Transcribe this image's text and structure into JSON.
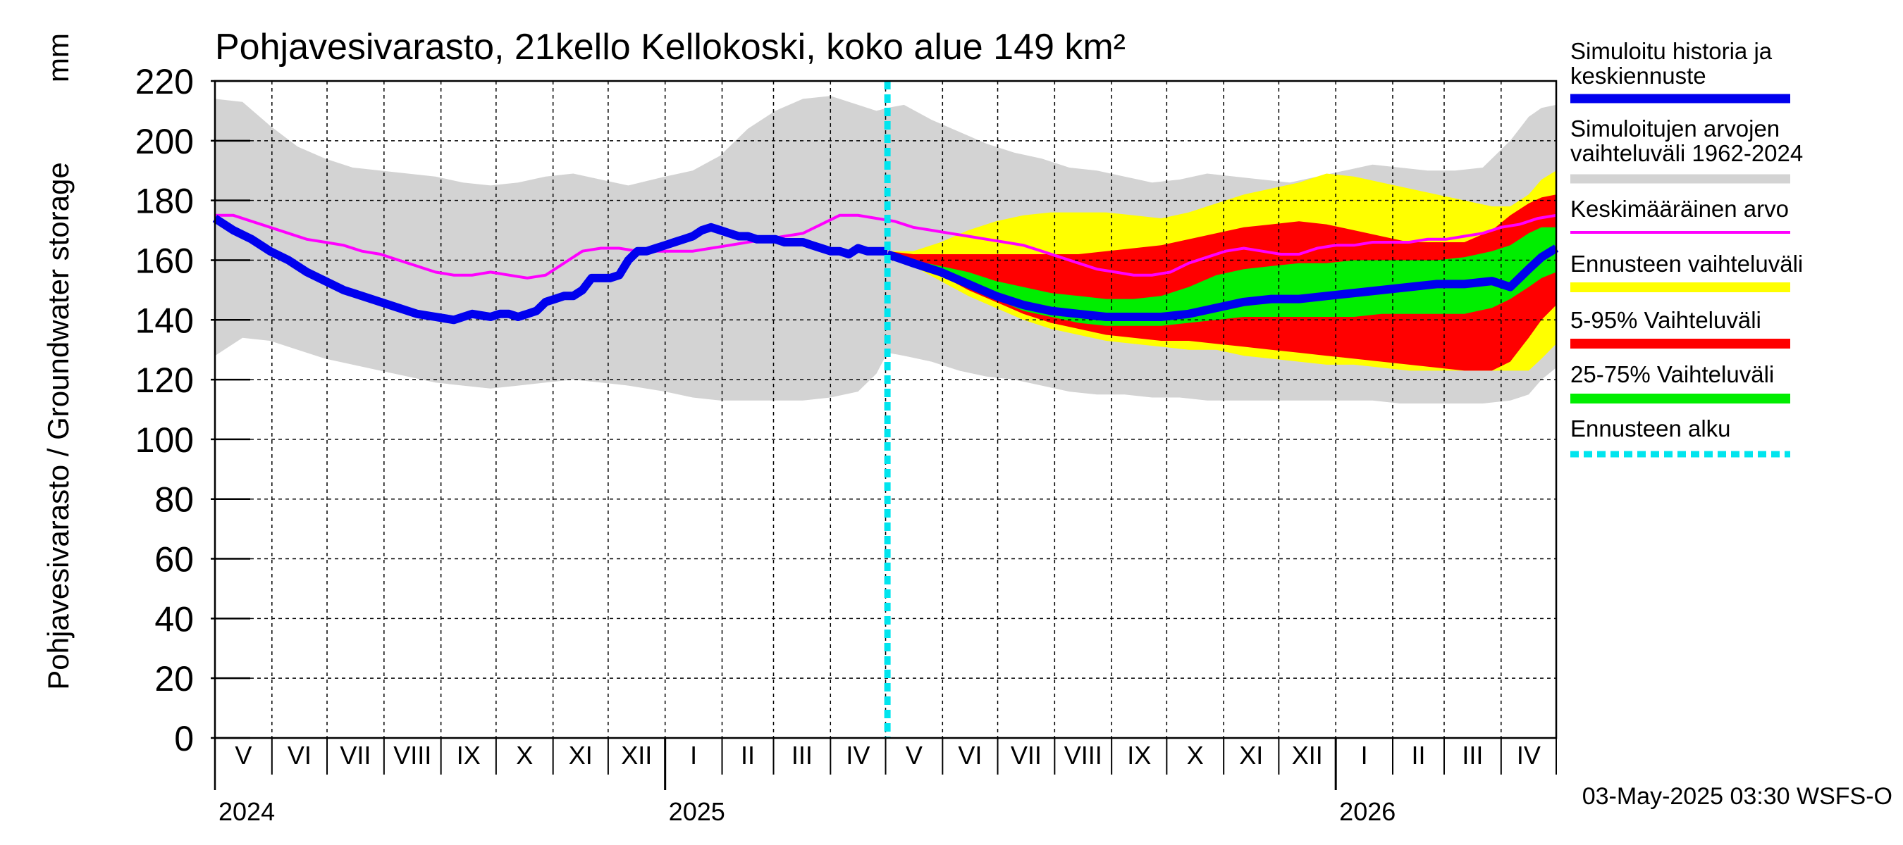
{
  "chart_data": {
    "type": "area",
    "title": "Pohjavesivarasto, 21kello Kellokoski, koko alue 149 km²",
    "ylabel": "Pohjavesivarasto / Groundwater storage",
    "yunit": "mm",
    "ylim": [
      0,
      220
    ],
    "yticks": [
      0,
      20,
      40,
      60,
      80,
      100,
      120,
      140,
      160,
      180,
      200,
      220
    ],
    "xlim_days": [
      0,
      730
    ],
    "month_labels": [
      "V",
      "VI",
      "VII",
      "VIII",
      "IX",
      "X",
      "XI",
      "XII",
      "I",
      "II",
      "III",
      "IV",
      "V",
      "VI",
      "VII",
      "VIII",
      "IX",
      "X",
      "XI",
      "XII",
      "I",
      "II",
      "III",
      "IV"
    ],
    "month_start_days": [
      0,
      31,
      61,
      92,
      123,
      153,
      184,
      214,
      245,
      276,
      304,
      335,
      365,
      396,
      426,
      457,
      488,
      518,
      549,
      579,
      610,
      641,
      669,
      700
    ],
    "year_labels": [
      {
        "label": "2024",
        "day": 0
      },
      {
        "label": "2025",
        "day": 245
      },
      {
        "label": "2026",
        "day": 610
      }
    ],
    "forecast_start_day": 366,
    "legend": [
      {
        "label": "Simuloitu historia ja keskiennuste",
        "key": "history"
      },
      {
        "label": "Simuloitujen arvojen vaihteluväli 1962-2024",
        "key": "hist_range"
      },
      {
        "label": "Keskimääräinen arvo",
        "key": "mean"
      },
      {
        "label": "Ennusteen vaihteluväli",
        "key": "fc_range"
      },
      {
        "label": "5-95% Vaihteluväli",
        "key": "p5_95"
      },
      {
        "label": "25-75% Vaihteluväli",
        "key": "p25_75"
      },
      {
        "label": "Ennusteen alku",
        "key": "fc_start"
      }
    ],
    "colors": {
      "history": "#0000ee",
      "hist_range": "#d3d3d3",
      "mean": "#ff00ff",
      "fc_range": "#ffff00",
      "p5_95": "#ff0000",
      "p25_75": "#00ee00",
      "fc_start": "#00e5ee"
    },
    "series": {
      "hist_range": {
        "x": [
          0,
          15,
          30,
          45,
          60,
          75,
          90,
          105,
          120,
          135,
          150,
          165,
          180,
          195,
          210,
          225,
          245,
          260,
          275,
          290,
          305,
          320,
          335,
          350,
          360,
          366,
          375,
          390,
          405,
          420,
          435,
          450,
          465,
          480,
          495,
          510,
          525,
          540,
          555,
          570,
          585,
          600,
          615,
          630,
          645,
          660,
          675,
          690,
          705,
          715,
          722,
          730
        ],
        "upper": [
          214,
          213,
          205,
          198,
          194,
          191,
          190,
          189,
          188,
          186,
          185,
          186,
          188,
          189,
          187,
          185,
          188,
          190,
          195,
          204,
          210,
          214,
          215,
          212,
          210,
          211,
          212,
          207,
          203,
          199,
          196,
          194,
          191,
          190,
          188,
          186,
          187,
          189,
          188,
          187,
          186,
          188,
          190,
          192,
          191,
          190,
          190,
          191,
          200,
          208,
          211,
          212
        ],
        "lower": [
          128,
          134,
          133,
          130,
          127,
          125,
          123,
          121,
          119,
          118,
          117,
          118,
          119,
          120,
          119,
          118,
          116,
          114,
          113,
          113,
          113,
          113,
          114,
          116,
          122,
          129,
          128,
          126,
          123,
          121,
          120,
          118,
          116,
          115,
          115,
          114,
          114,
          113,
          113,
          113,
          113,
          113,
          113,
          113,
          112,
          112,
          112,
          112,
          113,
          115,
          120,
          124
        ]
      },
      "fc_range": {
        "x": [
          366,
          380,
          395,
          410,
          425,
          440,
          455,
          470,
          485,
          500,
          515,
          530,
          545,
          560,
          575,
          590,
          605,
          620,
          635,
          650,
          665,
          680,
          695,
          705,
          715,
          722,
          730
        ],
        "upper": [
          163,
          163,
          166,
          170,
          173,
          175,
          176,
          176,
          176,
          175,
          174,
          176,
          179,
          182,
          184,
          186,
          189,
          188,
          186,
          184,
          182,
          180,
          178,
          178,
          182,
          187,
          190
        ],
        "lower": [
          163,
          158,
          153,
          148,
          144,
          140,
          137,
          135,
          133,
          132,
          131,
          130,
          130,
          128,
          127,
          126,
          125,
          125,
          124,
          123,
          123,
          123,
          123,
          123,
          123,
          127,
          132
        ]
      },
      "p5_95": {
        "x": [
          366,
          380,
          395,
          410,
          425,
          440,
          455,
          470,
          485,
          500,
          515,
          530,
          545,
          560,
          575,
          590,
          605,
          620,
          635,
          650,
          665,
          680,
          695,
          705,
          715,
          722,
          730
        ],
        "upper": [
          163,
          162,
          162,
          162,
          162,
          162,
          162,
          162,
          163,
          164,
          165,
          167,
          169,
          171,
          172,
          173,
          172,
          170,
          168,
          166,
          166,
          166,
          170,
          175,
          179,
          181,
          182
        ],
        "lower": [
          163,
          159,
          155,
          150,
          146,
          142,
          139,
          137,
          135,
          134,
          133,
          133,
          132,
          131,
          130,
          129,
          128,
          127,
          126,
          125,
          124,
          123,
          123,
          126,
          134,
          140,
          145
        ]
      },
      "p25_75": {
        "x": [
          366,
          380,
          395,
          410,
          425,
          440,
          455,
          470,
          485,
          500,
          515,
          530,
          545,
          560,
          575,
          590,
          605,
          620,
          635,
          650,
          665,
          680,
          695,
          705,
          715,
          722,
          730
        ],
        "upper": [
          162,
          160,
          158,
          156,
          153,
          151,
          149,
          148,
          147,
          147,
          148,
          151,
          155,
          157,
          158,
          159,
          159,
          160,
          160,
          160,
          160,
          161,
          163,
          165,
          169,
          171,
          171
        ],
        "lower": [
          162,
          159,
          155,
          151,
          147,
          143,
          141,
          139,
          138,
          138,
          138,
          139,
          140,
          141,
          141,
          141,
          141,
          141,
          142,
          142,
          142,
          142,
          144,
          147,
          151,
          154,
          156
        ]
      },
      "mean": {
        "x": [
          0,
          10,
          20,
          30,
          40,
          50,
          60,
          70,
          80,
          90,
          100,
          110,
          120,
          130,
          140,
          150,
          160,
          170,
          180,
          190,
          200,
          210,
          220,
          230,
          240,
          250,
          260,
          270,
          280,
          290,
          300,
          310,
          320,
          330,
          340,
          350,
          360,
          370,
          380,
          390,
          400,
          410,
          420,
          430,
          440,
          450,
          460,
          470,
          480,
          490,
          500,
          510,
          520,
          530,
          540,
          550,
          560,
          570,
          580,
          590,
          600,
          610,
          620,
          630,
          640,
          650,
          660,
          670,
          680,
          690,
          700,
          710,
          720,
          730
        ],
        "y": [
          175,
          175,
          173,
          171,
          169,
          167,
          166,
          165,
          163,
          162,
          160,
          158,
          156,
          155,
          155,
          156,
          155,
          154,
          155,
          159,
          163,
          164,
          164,
          163,
          163,
          163,
          163,
          164,
          165,
          166,
          167,
          168,
          169,
          172,
          175,
          175,
          174,
          173,
          171,
          170,
          169,
          168,
          167,
          166,
          165,
          163,
          161,
          159,
          157,
          156,
          155,
          155,
          156,
          159,
          161,
          163,
          164,
          163,
          162,
          162,
          164,
          165,
          165,
          166,
          166,
          166,
          167,
          167,
          168,
          169,
          171,
          172,
          174,
          175
        ]
      },
      "history": {
        "x": [
          0,
          10,
          20,
          30,
          40,
          50,
          60,
          70,
          80,
          90,
          100,
          110,
          120,
          130,
          140,
          150,
          155,
          160,
          165,
          170,
          175,
          180,
          185,
          190,
          195,
          200,
          205,
          210,
          215,
          220,
          225,
          230,
          235,
          240,
          245,
          250,
          255,
          260,
          265,
          270,
          275,
          280,
          285,
          290,
          295,
          300,
          305,
          310,
          315,
          320,
          325,
          330,
          335,
          340,
          345,
          350,
          355,
          360,
          366
        ],
        "y": [
          174,
          170,
          167,
          163,
          160,
          156,
          153,
          150,
          148,
          146,
          144,
          142,
          141,
          140,
          142,
          141,
          142,
          142,
          141,
          142,
          143,
          146,
          147,
          148,
          148,
          150,
          154,
          154,
          154,
          155,
          160,
          163,
          163,
          164,
          165,
          166,
          167,
          168,
          170,
          171,
          170,
          169,
          168,
          168,
          167,
          167,
          167,
          166,
          166,
          166,
          165,
          164,
          163,
          163,
          162,
          164,
          163,
          163,
          163
        ]
      },
      "forecast_median": {
        "x": [
          366,
          380,
          395,
          410,
          425,
          440,
          455,
          470,
          485,
          500,
          515,
          530,
          545,
          560,
          575,
          590,
          605,
          620,
          635,
          650,
          665,
          680,
          695,
          705,
          715,
          722,
          730
        ],
        "y": [
          162,
          159,
          156,
          152,
          148,
          145,
          143,
          142,
          141,
          141,
          141,
          142,
          144,
          146,
          147,
          147,
          148,
          149,
          150,
          151,
          152,
          152,
          153,
          151,
          157,
          161,
          164
        ]
      }
    }
  },
  "footer": {
    "timestamp": "03-May-2025 03:30 WSFS-O"
  }
}
